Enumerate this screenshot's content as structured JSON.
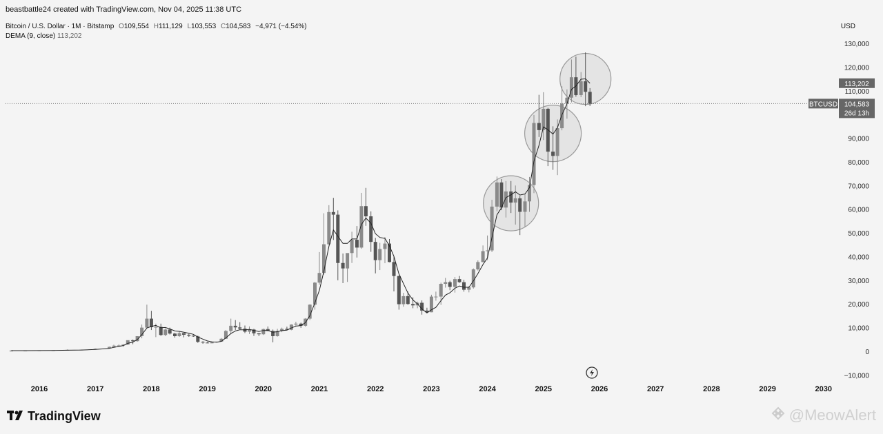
{
  "header": {
    "credit": "beastbattle24 created with TradingView.com, Nov 04, 2025 11:38 UTC",
    "symbol": "Bitcoin / U.S. Dollar · 1M · Bitstamp",
    "open_label": "O",
    "open": "109,554",
    "high_label": "H",
    "high": "111,129",
    "low_label": "L",
    "low": "103,553",
    "close_label": "C",
    "close": "104,583",
    "change": "−4,971 (−4.54%)",
    "indicator": "DEMA (9, close)",
    "indicator_value": "113,202"
  },
  "currency_label": "USD",
  "price_tags": {
    "symbol_tag": "BTCUSD",
    "last_price": "104,583",
    "countdown": "26d 13h",
    "dema": "113,202"
  },
  "footer": {
    "logo_text": "TradingView",
    "watermark": "@MeowAlert"
  },
  "colors": {
    "background": "#f4f4f4",
    "candle": "#8a8a8a",
    "candle_dark": "#555555",
    "price_tag": "#666666",
    "dema_line": "#222222"
  },
  "chart_data": {
    "type": "candlestick",
    "title": "Bitcoin / U.S. Dollar · 1M · Bitstamp",
    "ylabel": "USD",
    "ylim": [
      -10000,
      130000
    ],
    "y_ticks": [
      "130,000",
      "120,000",
      "110,000",
      "90,000",
      "80,000",
      "70,000",
      "60,000",
      "50,000",
      "40,000",
      "30,000",
      "20,000",
      "10,000",
      "0",
      "−10,000"
    ],
    "y_tick_values": [
      130000,
      120000,
      110000,
      90000,
      80000,
      70000,
      60000,
      50000,
      40000,
      30000,
      20000,
      10000,
      0,
      -10000
    ],
    "x_ticks": [
      "2016",
      "2017",
      "2018",
      "2019",
      "2020",
      "2021",
      "2022",
      "2023",
      "2024",
      "2025",
      "2026",
      "2027",
      "2028",
      "2029",
      "2030"
    ],
    "x_tick_values": [
      2016,
      2017,
      2018,
      2019,
      2020,
      2021,
      2022,
      2023,
      2024,
      2025,
      2026,
      2027,
      2028,
      2029,
      2030
    ],
    "xlim": [
      2015.42,
      2030.55
    ],
    "series_ohlc": [
      [
        2015.5,
        300,
        320,
        280,
        290
      ],
      [
        2015.75,
        290,
        330,
        270,
        320
      ],
      [
        2016.0,
        430,
        440,
        360,
        370
      ],
      [
        2016.25,
        420,
        460,
        410,
        450
      ],
      [
        2016.5,
        600,
        780,
        560,
        620
      ],
      [
        2016.75,
        620,
        740,
        590,
        700
      ],
      [
        2017.0,
        970,
        1200,
        760,
        1100
      ],
      [
        2017.25,
        1350,
        2000,
        1300,
        1900
      ],
      [
        2017.33,
        1900,
        2800,
        1800,
        2400
      ],
      [
        2017.42,
        2400,
        2950,
        2100,
        2500
      ],
      [
        2017.5,
        2500,
        3000,
        1900,
        2850
      ],
      [
        2017.58,
        2850,
        4400,
        2700,
        4700
      ],
      [
        2017.67,
        4700,
        4980,
        3000,
        4300
      ],
      [
        2017.75,
        4300,
        6400,
        4100,
        6400
      ],
      [
        2017.83,
        6400,
        11300,
        5500,
        10000
      ],
      [
        2017.92,
        10000,
        19700,
        10000,
        13800
      ],
      [
        2018.0,
        13800,
        17100,
        9000,
        10200
      ],
      [
        2018.08,
        10200,
        11700,
        6000,
        10300
      ],
      [
        2018.17,
        10300,
        11700,
        6500,
        6900
      ],
      [
        2018.25,
        6900,
        9700,
        6400,
        9200
      ],
      [
        2018.33,
        9200,
        10000,
        7100,
        7500
      ],
      [
        2018.42,
        7500,
        7800,
        5800,
        6400
      ],
      [
        2018.5,
        6400,
        8500,
        6100,
        7700
      ],
      [
        2018.58,
        7700,
        7700,
        5900,
        7000
      ],
      [
        2018.67,
        7000,
        7400,
        6100,
        6600
      ],
      [
        2018.75,
        6600,
        6800,
        6100,
        6300
      ],
      [
        2018.83,
        6300,
        6600,
        3600,
        4000
      ],
      [
        2018.92,
        4000,
        4300,
        3200,
        3700
      ],
      [
        2019.0,
        3700,
        4000,
        3400,
        3400
      ],
      [
        2019.08,
        3400,
        4200,
        3400,
        3800
      ],
      [
        2019.17,
        3800,
        4100,
        3700,
        4100
      ],
      [
        2019.25,
        4100,
        5600,
        4100,
        5300
      ],
      [
        2019.33,
        5300,
        9000,
        5300,
        8600
      ],
      [
        2019.42,
        8600,
        13800,
        7500,
        10800
      ],
      [
        2019.5,
        10800,
        13200,
        9000,
        10100
      ],
      [
        2019.58,
        10100,
        12300,
        9300,
        9600
      ],
      [
        2019.67,
        9600,
        10900,
        7700,
        8300
      ],
      [
        2019.75,
        8300,
        10500,
        7300,
        9200
      ],
      [
        2019.83,
        9200,
        9500,
        6500,
        7600
      ],
      [
        2019.92,
        7600,
        7700,
        6400,
        7200
      ],
      [
        2020.0,
        7200,
        9600,
        6900,
        9400
      ],
      [
        2020.08,
        9400,
        10500,
        8500,
        8600
      ],
      [
        2020.17,
        8600,
        9200,
        3800,
        6400
      ],
      [
        2020.25,
        6400,
        9500,
        6200,
        8600
      ],
      [
        2020.33,
        8600,
        10000,
        8100,
        9500
      ],
      [
        2020.42,
        9500,
        10400,
        8900,
        9100
      ],
      [
        2020.5,
        9100,
        11400,
        8900,
        11300
      ],
      [
        2020.58,
        11300,
        12500,
        10600,
        11700
      ],
      [
        2020.67,
        11700,
        12100,
        9900,
        10800
      ],
      [
        2020.75,
        10800,
        14000,
        10400,
        13800
      ],
      [
        2020.83,
        13800,
        19900,
        13200,
        19700
      ],
      [
        2020.92,
        19700,
        29300,
        17600,
        29000
      ],
      [
        2021.0,
        29000,
        41900,
        28100,
        33100
      ],
      [
        2021.08,
        33100,
        58300,
        32400,
        45200
      ],
      [
        2021.17,
        45200,
        61700,
        45000,
        58800
      ],
      [
        2021.25,
        58800,
        64800,
        47000,
        57700
      ],
      [
        2021.33,
        57700,
        59500,
        30000,
        37300
      ],
      [
        2021.42,
        37300,
        41300,
        28800,
        35000
      ],
      [
        2021.5,
        35000,
        36600,
        29300,
        41500
      ],
      [
        2021.58,
        41500,
        50500,
        37300,
        47100
      ],
      [
        2021.67,
        47100,
        52900,
        39600,
        43800
      ],
      [
        2021.75,
        43800,
        66900,
        43300,
        61300
      ],
      [
        2021.83,
        61300,
        69000,
        53000,
        57000
      ],
      [
        2021.92,
        57000,
        59100,
        42000,
        46200
      ],
      [
        2022.0,
        46200,
        47900,
        32900,
        38500
      ],
      [
        2022.08,
        38500,
        45800,
        34300,
        43200
      ],
      [
        2022.17,
        43200,
        48200,
        37200,
        45500
      ],
      [
        2022.25,
        45500,
        47400,
        37600,
        37700
      ],
      [
        2022.33,
        37700,
        40000,
        25300,
        31800
      ],
      [
        2022.42,
        31800,
        31900,
        17600,
        19900
      ],
      [
        2022.5,
        19900,
        24700,
        18800,
        23300
      ],
      [
        2022.58,
        23300,
        25200,
        19600,
        20000
      ],
      [
        2022.67,
        20000,
        22800,
        18200,
        19400
      ],
      [
        2022.75,
        19400,
        21000,
        18200,
        20500
      ],
      [
        2022.83,
        20500,
        21500,
        15500,
        17200
      ],
      [
        2022.92,
        17200,
        18400,
        16300,
        16500
      ],
      [
        2023.0,
        16500,
        23900,
        16500,
        23100
      ],
      [
        2023.08,
        23100,
        25200,
        21400,
        23100
      ],
      [
        2023.17,
        23100,
        29000,
        19600,
        28500
      ],
      [
        2023.25,
        28500,
        31000,
        26900,
        29200
      ],
      [
        2023.33,
        29200,
        29800,
        25800,
        27200
      ],
      [
        2023.42,
        27200,
        31400,
        24800,
        30500
      ],
      [
        2023.5,
        30500,
        31800,
        28900,
        29200
      ],
      [
        2023.58,
        29200,
        30200,
        25200,
        26000
      ],
      [
        2023.67,
        26000,
        27500,
        24900,
        27000
      ],
      [
        2023.75,
        27000,
        35000,
        26500,
        34600
      ],
      [
        2023.83,
        34600,
        38400,
        34100,
        37700
      ],
      [
        2023.92,
        37700,
        44700,
        37600,
        42300
      ],
      [
        2024.0,
        42300,
        48900,
        38500,
        42600
      ],
      [
        2024.08,
        42600,
        64000,
        41900,
        61100
      ],
      [
        2024.17,
        61100,
        73800,
        59100,
        71300
      ],
      [
        2024.25,
        71300,
        72700,
        59600,
        60700
      ],
      [
        2024.33,
        60700,
        71900,
        56500,
        67500
      ],
      [
        2024.42,
        67500,
        71900,
        58400,
        62800
      ],
      [
        2024.5,
        62800,
        70000,
        53500,
        64600
      ],
      [
        2024.58,
        64600,
        65600,
        49100,
        58900
      ],
      [
        2024.67,
        58900,
        66500,
        52600,
        63300
      ],
      [
        2024.75,
        63300,
        73600,
        58900,
        70200
      ],
      [
        2024.83,
        70200,
        99800,
        66800,
        96400
      ],
      [
        2024.92,
        96400,
        108300,
        90500,
        93400
      ],
      [
        2025.0,
        93400,
        109400,
        89200,
        102400
      ],
      [
        2025.08,
        102400,
        102800,
        78200,
        84300
      ],
      [
        2025.17,
        84300,
        95000,
        76600,
        82500
      ],
      [
        2025.25,
        82500,
        97900,
        74400,
        94200
      ],
      [
        2025.33,
        94200,
        111900,
        93300,
        104600
      ],
      [
        2025.42,
        104600,
        110600,
        98200,
        107100
      ],
      [
        2025.5,
        107100,
        123200,
        105100,
        115700
      ],
      [
        2025.58,
        115700,
        124400,
        107500,
        108200
      ],
      [
        2025.67,
        108200,
        117900,
        107300,
        114000
      ],
      [
        2025.75,
        114000,
        126200,
        103500,
        109554
      ],
      [
        2025.83,
        109554,
        111129,
        103553,
        104583
      ]
    ],
    "dema_reference": "DEMA (9, close)",
    "highlight_circles": [
      "2024 consolidation",
      "2025 Q1 range",
      "2025 top"
    ],
    "last_price": 104583,
    "grid": false
  }
}
